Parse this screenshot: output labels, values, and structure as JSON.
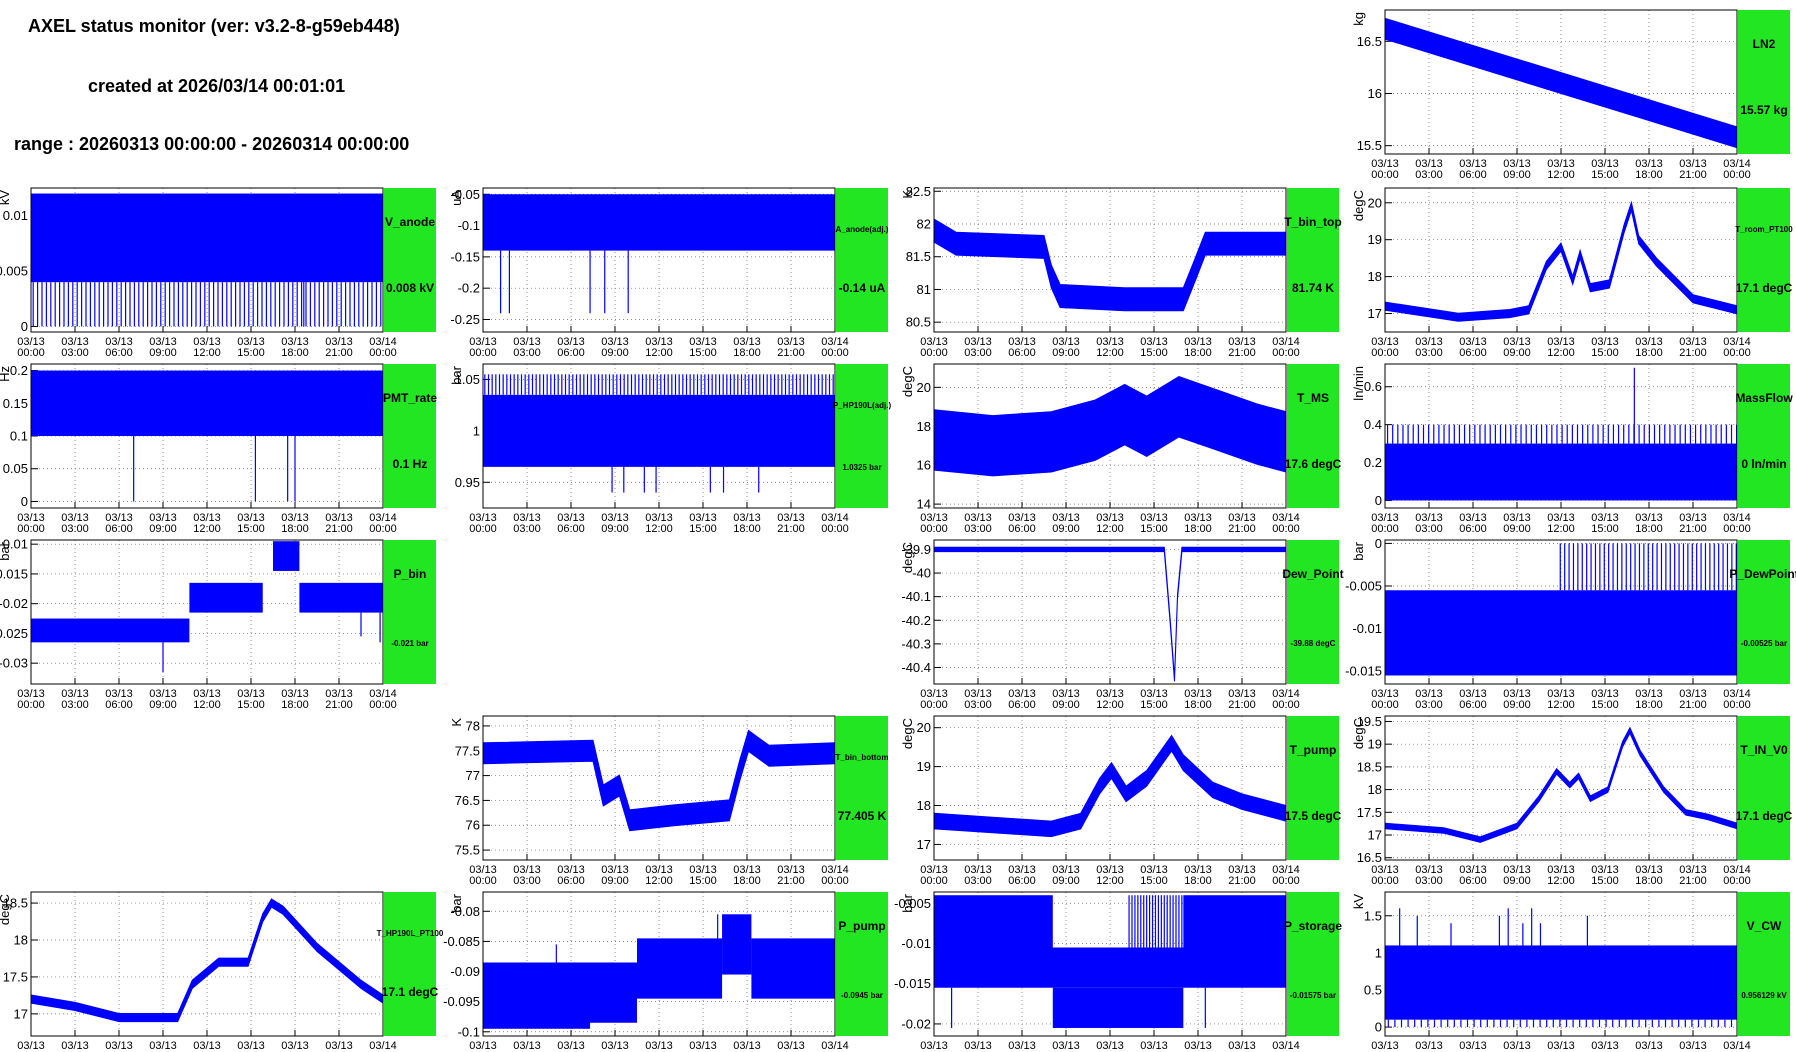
{
  "header": {
    "title": "AXEL status monitor (ver: v3.2-8-g59eb448)",
    "created": "created at 2026/03/14 00:01:01",
    "range": "range : 20260313 00:00:00 - 20260314 00:00:00"
  },
  "colors": {
    "series": "#0000ff",
    "label_box": "#22e622"
  },
  "time_ticks": [
    [
      "03/13",
      "00:00"
    ],
    [
      "03/13",
      "03:00"
    ],
    [
      "03/13",
      "06:00"
    ],
    [
      "03/13",
      "09:00"
    ],
    [
      "03/13",
      "12:00"
    ],
    [
      "03/13",
      "15:00"
    ],
    [
      "03/13",
      "18:00"
    ],
    [
      "03/13",
      "21:00"
    ],
    [
      "03/14",
      "00:00"
    ]
  ],
  "chart_data": [
    {
      "name": "LN2",
      "current": "15.57 kg",
      "unit": "kg",
      "type": "line",
      "yticks": [
        "15.5",
        "16",
        "16.5"
      ],
      "ylim": [
        15.42,
        16.8
      ],
      "band": {
        "pts": [
          [
            0,
            16.62
          ],
          [
            24,
            15.58
          ]
        ],
        "w": 0.2
      }
    },
    {
      "name": "V_anode",
      "current": "0.008 kV",
      "unit": "kV",
      "type": "line",
      "yticks": [
        "0",
        "0.005",
        "0.01"
      ],
      "ylim": [
        -0.0005,
        0.0125
      ],
      "rect": [
        0,
        24,
        0.004,
        0.012
      ],
      "fill_to": 0,
      "spikes": {
        "from": 0,
        "to": 24,
        "every": 0.3,
        "y0": 0,
        "y1": 0.004
      },
      "lines": [
        [
          18.6,
          0,
          0.008
        ]
      ]
    },
    {
      "name": "A_anode(adj.)",
      "current": "-0.14 uA",
      "unit": "uA",
      "type": "line",
      "yticks": [
        "-0.05",
        "-0.1",
        "-0.15",
        "-0.2",
        "-0.25"
      ],
      "ylim": [
        -0.27,
        -0.04
      ],
      "rect": [
        0,
        24,
        -0.14,
        -0.05
      ],
      "lines": [
        [
          1.2,
          -0.14,
          -0.24
        ],
        [
          1.8,
          -0.14,
          -0.24
        ],
        [
          7.3,
          -0.14,
          -0.24
        ],
        [
          8.3,
          -0.14,
          -0.24
        ],
        [
          9.9,
          -0.14,
          -0.24
        ]
      ]
    },
    {
      "name": "T_bin_top",
      "current": "81.74 K",
      "unit": "K",
      "type": "line",
      "yticks": [
        "80.5",
        "81",
        "81.5",
        "82",
        "82.5"
      ],
      "ylim": [
        80.35,
        82.55
      ],
      "band": {
        "pts": [
          [
            0,
            81.9
          ],
          [
            1.5,
            81.7
          ],
          [
            7.5,
            81.65
          ],
          [
            8.0,
            81.2
          ],
          [
            8.6,
            80.9
          ],
          [
            13,
            80.85
          ],
          [
            17,
            80.85
          ],
          [
            17.8,
            81.3
          ],
          [
            18.5,
            81.7
          ],
          [
            24,
            81.7
          ]
        ],
        "w": 0.35
      }
    },
    {
      "name": "T_room_PT100",
      "current": "17.1 degC",
      "unit": "degC",
      "type": "line",
      "yticks": [
        "17",
        "18",
        "19",
        "20"
      ],
      "ylim": [
        16.5,
        20.4
      ],
      "band": {
        "pts": [
          [
            0,
            17.2
          ],
          [
            5,
            16.9
          ],
          [
            8.5,
            17.0
          ],
          [
            9.8,
            17.1
          ],
          [
            11,
            18.3
          ],
          [
            12,
            18.8
          ],
          [
            12.8,
            17.9
          ],
          [
            13.3,
            18.6
          ],
          [
            14,
            17.7
          ],
          [
            15.3,
            17.8
          ],
          [
            16.3,
            19.3
          ],
          [
            16.8,
            19.9
          ],
          [
            17.3,
            19.0
          ],
          [
            18.5,
            18.4
          ],
          [
            21,
            17.4
          ],
          [
            24,
            17.1
          ]
        ],
        "w": 0.22
      }
    },
    {
      "name": "PMT_rate",
      "current": "0.1 Hz",
      "unit": "Hz",
      "type": "line",
      "yticks": [
        "0",
        "0.05",
        "0.1",
        "0.15",
        "0.2"
      ],
      "ylim": [
        -0.01,
        0.21
      ],
      "rect": [
        0,
        24,
        0.1,
        0.2
      ],
      "lines": [
        [
          7.0,
          0.1,
          0
        ],
        [
          15.3,
          0.1,
          0
        ],
        [
          17.5,
          0.1,
          0
        ],
        [
          18.0,
          0.1,
          0
        ]
      ]
    },
    {
      "name": "P_HP190L(adj.)",
      "current": "1.0325 bar",
      "unit": "bar",
      "type": "line",
      "yticks": [
        "0.95",
        "1",
        "1.05"
      ],
      "ylim": [
        0.925,
        1.065
      ],
      "rect": [
        0,
        24,
        0.965,
        1.035
      ],
      "spikes": {
        "from": 0,
        "to": 24,
        "every": 0.25,
        "y0": 1.035,
        "y1": 1.055
      },
      "lines": [
        [
          8.8,
          0.965,
          0.94
        ],
        [
          9.6,
          0.965,
          0.94
        ],
        [
          11.0,
          0.965,
          0.94
        ],
        [
          11.8,
          1.0,
          0.94
        ],
        [
          15.5,
          0.965,
          0.94
        ],
        [
          16.4,
          0.965,
          0.94
        ],
        [
          18.8,
          0.965,
          0.94
        ]
      ]
    },
    {
      "name": "T_MS",
      "current": "17.6 degC",
      "unit": "degC",
      "type": "line",
      "yticks": [
        "14",
        "16",
        "18",
        "20"
      ],
      "ylim": [
        13.8,
        21.2
      ],
      "band": {
        "pts": [
          [
            0,
            17.3
          ],
          [
            4,
            17.0
          ],
          [
            8,
            17.2
          ],
          [
            11,
            17.8
          ],
          [
            13,
            18.6
          ],
          [
            14.5,
            18.0
          ],
          [
            16.7,
            19.0
          ],
          [
            19,
            18.4
          ],
          [
            22,
            17.6
          ],
          [
            24,
            17.2
          ]
        ],
        "w": 3.1
      }
    },
    {
      "name": "MassFlow",
      "current": "0 ln/min",
      "unit": "ln/min",
      "type": "line",
      "yticks": [
        "0",
        "0.2",
        "0.4",
        "0.6"
      ],
      "ylim": [
        -0.04,
        0.72
      ],
      "rect": [
        0,
        24,
        0,
        0.3
      ],
      "spikes": {
        "from": 0,
        "to": 24,
        "every": 0.35,
        "y0": 0.3,
        "y1": 0.4
      },
      "lines": [
        [
          17.0,
          0.3,
          0.7
        ]
      ]
    },
    {
      "name": "P_bin",
      "current": "-0.021 bar",
      "unit": "bar",
      "type": "line",
      "yticks": [
        "-0.01",
        "-0.015",
        "-0.02",
        "-0.025",
        "-0.03"
      ],
      "ylim": [
        -0.0335,
        -0.0093
      ],
      "rects": [
        [
          0,
          10.8,
          -0.0265,
          -0.0225
        ],
        [
          10.8,
          15.8,
          -0.0215,
          -0.0165
        ],
        [
          16.5,
          18.3,
          -0.0145,
          -0.0095
        ],
        [
          18.3,
          24,
          -0.0215,
          -0.0165
        ]
      ],
      "lines": [
        [
          9.0,
          -0.0265,
          -0.0315
        ],
        [
          22.5,
          -0.0215,
          -0.0255
        ],
        [
          23.8,
          -0.0215,
          -0.0265
        ]
      ]
    },
    {
      "name": "Dew_Point",
      "current": "-39.88 degC",
      "unit": "degC",
      "type": "line",
      "yticks": [
        "-39.9",
        "-40",
        "-40.1",
        "-40.2",
        "-40.3",
        "-40.4"
      ],
      "ylim": [
        -40.47,
        -39.86
      ],
      "band": {
        "pts": [
          [
            0,
            -39.9
          ],
          [
            15.7,
            -39.9
          ],
          [
            16.1,
            -40.2
          ],
          [
            16.4,
            -40.45
          ],
          [
            16.6,
            -40.1
          ],
          [
            16.9,
            -39.9
          ],
          [
            24,
            -39.9
          ]
        ],
        "w": 0.018
      }
    },
    {
      "name": "P_DewPoint",
      "current": "-0.00525 bar",
      "unit": "bar",
      "type": "line",
      "yticks": [
        "0",
        "-0.005",
        "-0.01",
        "-0.015"
      ],
      "ylim": [
        -0.0165,
        0.0004
      ],
      "rect": [
        0,
        24,
        -0.0155,
        -0.0055
      ],
      "spikes": {
        "from": 11.8,
        "to": 24,
        "every": 0.3,
        "y0": -0.0055,
        "y1": 0
      },
      "lines": [
        [
          14.9,
          -0.01,
          -0.0155
        ],
        [
          15.5,
          -0.01,
          -0.0155
        ],
        [
          16.2,
          -0.01,
          -0.0155
        ],
        [
          17.0,
          -0.01,
          -0.0155
        ],
        [
          17.8,
          -0.01,
          -0.0155
        ]
      ]
    },
    {
      "name": "T_bin_bottom",
      "current": "77.405 K",
      "unit": "K",
      "type": "line",
      "yticks": [
        "75.5",
        "76",
        "76.5",
        "77",
        "77.5",
        "78"
      ],
      "ylim": [
        75.3,
        78.2
      ],
      "band": {
        "pts": [
          [
            0,
            77.45
          ],
          [
            7.5,
            77.5
          ],
          [
            8.2,
            76.6
          ],
          [
            9.3,
            76.8
          ],
          [
            10.0,
            76.1
          ],
          [
            13,
            76.2
          ],
          [
            16.8,
            76.3
          ],
          [
            17.5,
            77.1
          ],
          [
            18.1,
            77.7
          ],
          [
            19.5,
            77.4
          ],
          [
            24,
            77.45
          ]
        ],
        "w": 0.42
      }
    },
    {
      "name": "T_pump",
      "current": "17.5 degC",
      "unit": "degC",
      "type": "line",
      "yticks": [
        "17",
        "18",
        "19",
        "20"
      ],
      "ylim": [
        16.6,
        20.3
      ],
      "band": {
        "pts": [
          [
            0,
            17.6
          ],
          [
            4,
            17.5
          ],
          [
            8,
            17.4
          ],
          [
            10,
            17.6
          ],
          [
            11.3,
            18.5
          ],
          [
            12.1,
            18.9
          ],
          [
            13.1,
            18.3
          ],
          [
            14.5,
            18.7
          ],
          [
            16.2,
            19.6
          ],
          [
            17,
            19.1
          ],
          [
            19,
            18.4
          ],
          [
            21,
            18.1
          ],
          [
            24,
            17.8
          ]
        ],
        "w": 0.4
      }
    },
    {
      "name": "T_IN_V0",
      "current": "17.1 degC",
      "unit": "degC",
      "type": "line",
      "yticks": [
        "16.5",
        "17",
        "17.5",
        "18",
        "18.5",
        "19",
        "19.5"
      ],
      "ylim": [
        16.45,
        19.62
      ],
      "band": {
        "pts": [
          [
            0,
            17.2
          ],
          [
            4,
            17.1
          ],
          [
            6.5,
            16.9
          ],
          [
            9,
            17.2
          ],
          [
            10.5,
            17.8
          ],
          [
            11.7,
            18.4
          ],
          [
            12.6,
            18.1
          ],
          [
            13.2,
            18.3
          ],
          [
            14,
            17.8
          ],
          [
            15.2,
            18.0
          ],
          [
            16.2,
            19.0
          ],
          [
            16.7,
            19.3
          ],
          [
            17.4,
            18.8
          ],
          [
            19,
            18.0
          ],
          [
            20.5,
            17.5
          ],
          [
            22,
            17.4
          ],
          [
            24,
            17.2
          ]
        ],
        "w": 0.12
      }
    },
    {
      "name": "T_HP190L_PT100",
      "current": "17.1 degC",
      "unit": "degC",
      "type": "line",
      "yticks": [
        "17",
        "17.5",
        "18",
        "18.5"
      ],
      "ylim": [
        16.7,
        18.65
      ],
      "band": {
        "pts": [
          [
            0,
            17.2
          ],
          [
            3,
            17.1
          ],
          [
            6,
            16.95
          ],
          [
            10,
            16.95
          ],
          [
            11,
            17.4
          ],
          [
            12.8,
            17.7
          ],
          [
            14.8,
            17.7
          ],
          [
            15.8,
            18.3
          ],
          [
            16.4,
            18.5
          ],
          [
            17.2,
            18.4
          ],
          [
            19.5,
            17.9
          ],
          [
            22.5,
            17.4
          ],
          [
            24,
            17.2
          ]
        ],
        "w": 0.11
      }
    },
    {
      "name": "P_pump",
      "current": "-0.0945 bar",
      "unit": "bar",
      "type": "line",
      "yticks": [
        "-0.08",
        "-0.085",
        "-0.09",
        "-0.095",
        "-0.1"
      ],
      "ylim": [
        -0.1007,
        -0.0768
      ],
      "rects": [
        [
          0,
          10.5,
          -0.0985,
          -0.0885
        ],
        [
          10.5,
          16.3,
          -0.0945,
          -0.0845
        ],
        [
          16.3,
          18.3,
          -0.0905,
          -0.0805
        ],
        [
          18.3,
          24,
          -0.0945,
          -0.0845
        ],
        [
          0,
          7.3,
          -0.0995,
          -0.0965
        ]
      ],
      "lines": [
        [
          5.0,
          -0.0885,
          -0.0855
        ],
        [
          16.0,
          -0.0845,
          -0.0805
        ]
      ]
    },
    {
      "name": "P_storage",
      "current": "-0.01575 bar",
      "unit": "bar",
      "type": "line",
      "yticks": [
        "-0.005",
        "-0.01",
        "-0.015",
        "-0.02"
      ],
      "ylim": [
        -0.0215,
        -0.0036
      ],
      "rects": [
        [
          0,
          24,
          -0.0155,
          -0.0105
        ],
        [
          0,
          8.1,
          -0.0105,
          -0.004
        ],
        [
          17.0,
          24,
          -0.0105,
          -0.004
        ],
        [
          8.1,
          17.0,
          -0.0205,
          -0.0155
        ]
      ],
      "spikes": {
        "from": 13.2,
        "to": 17.0,
        "every": 0.2,
        "y0": -0.0105,
        "y1": -0.004
      },
      "lines": [
        [
          1.2,
          -0.0155,
          -0.0205
        ],
        [
          18.5,
          -0.0155,
          -0.0205
        ]
      ]
    },
    {
      "name": "V_CW",
      "current": "0.956129 kV",
      "unit": "kV",
      "type": "line",
      "yticks": [
        "0",
        "0.5",
        "1",
        "1.5"
      ],
      "ylim": [
        -0.12,
        1.82
      ],
      "rect": [
        0,
        24,
        0.1,
        1.1
      ],
      "spikes": {
        "from": 0,
        "to": 24,
        "every": 0.45,
        "y0": 0.1,
        "y1": 0
      },
      "lines": [
        [
          1.0,
          1.1,
          1.6
        ],
        [
          2.2,
          1.1,
          1.5
        ],
        [
          4.5,
          1.1,
          1.4
        ],
        [
          7.8,
          1.1,
          1.5
        ],
        [
          8.4,
          1.1,
          1.6
        ],
        [
          9.4,
          1.1,
          1.4
        ],
        [
          10.0,
          1.1,
          1.6
        ],
        [
          10.6,
          1.1,
          1.4
        ],
        [
          13.8,
          1.1,
          1.5
        ]
      ]
    }
  ]
}
